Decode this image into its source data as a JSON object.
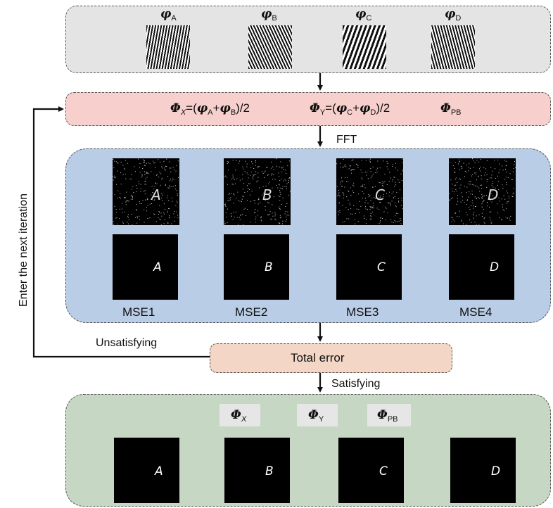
{
  "phases": {
    "phi_a": {
      "symbol": "φ",
      "sub": "A"
    },
    "phi_b": {
      "symbol": "φ",
      "sub": "B"
    },
    "phi_c": {
      "symbol": "φ",
      "sub": "C"
    },
    "phi_d": {
      "symbol": "φ",
      "sub": "D"
    }
  },
  "composite": {
    "phi_x": {
      "symbol": "Φ",
      "sub": "X",
      "expr_start": "=(",
      "t1": "φ",
      "s1": "A",
      "plus": "+",
      "t2": "φ",
      "s2": "B",
      "expr_end": ")/2"
    },
    "phi_y": {
      "symbol": "Φ",
      "sub": "Y",
      "expr_start": "=(",
      "t1": "φ",
      "s1": "C",
      "plus": "+",
      "t2": "φ",
      "s2": "D",
      "expr_end": ")/2"
    },
    "phi_pb": {
      "symbol": "Φ",
      "sub": "PB"
    }
  },
  "fft_label": "FFT",
  "reconstructions": {
    "noisy_letters": [
      "A",
      "B",
      "C",
      "D"
    ],
    "target_letters": [
      "A",
      "B",
      "C",
      "D"
    ],
    "mse_labels": [
      "MSE1",
      "MSE2",
      "MSE3",
      "MSE4"
    ]
  },
  "total_error": "Total error",
  "unsatisfying": "Unsatisfying",
  "satisfying": "Satisfying",
  "loop_label": "Enter the next iteration",
  "result": {
    "chips": [
      {
        "symbol": "Φ",
        "sub": "X"
      },
      {
        "symbol": "Φ",
        "sub": "Y"
      },
      {
        "symbol": "Φ",
        "sub": "PB"
      }
    ],
    "letters": [
      "A",
      "B",
      "C",
      "D"
    ]
  },
  "colors": {
    "phase_box": "#e4e4e4",
    "composite_box": "#f7cfcc",
    "fft_box": "#b9cde6",
    "error_box": "#f3d6c5",
    "result_box": "#c6d8c4"
  }
}
